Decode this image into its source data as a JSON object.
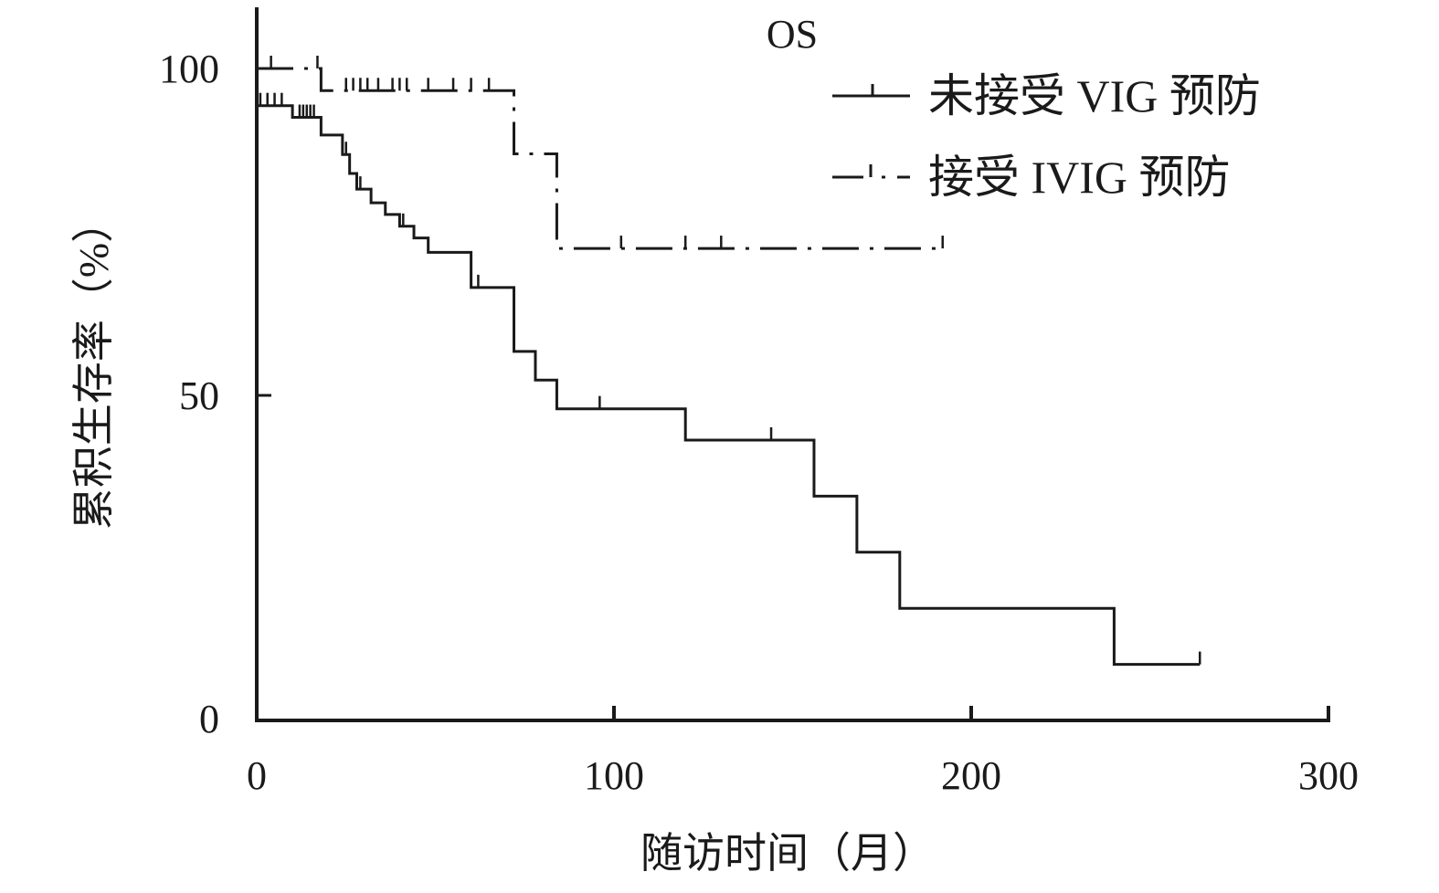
{
  "chart_data": {
    "type": "line",
    "title": "OS",
    "xlabel": "随访时间（月）",
    "ylabel": "累积生存率（%）",
    "xlim": [
      0,
      300
    ],
    "ylim": [
      0,
      100
    ],
    "x_ticks": [
      0,
      100,
      200,
      300
    ],
    "x_tick_labels": [
      "0",
      "100",
      "200",
      "300"
    ],
    "y_ticks": [
      0,
      50,
      100
    ],
    "y_tick_labels": [
      "0",
      "50",
      "100"
    ],
    "legend_position": "top-right",
    "grid": false,
    "series": [
      {
        "name": "未接受 VIG 预防",
        "style": "solid",
        "color": "#1a1a1a",
        "steps": [
          [
            0,
            94.3
          ],
          [
            10,
            92.5
          ],
          [
            18,
            89.8
          ],
          [
            24,
            86.8
          ],
          [
            26,
            83.9
          ],
          [
            28,
            81.5
          ],
          [
            32,
            79.4
          ],
          [
            36,
            77.6
          ],
          [
            40,
            75.8
          ],
          [
            44,
            74.0
          ],
          [
            48,
            71.8
          ],
          [
            60,
            66.4
          ],
          [
            72,
            56.6
          ],
          [
            78,
            52.2
          ],
          [
            84,
            47.8
          ],
          [
            120,
            43.0
          ],
          [
            156,
            34.4
          ],
          [
            168,
            25.8
          ],
          [
            180,
            17.2
          ],
          [
            240,
            8.6
          ],
          [
            264,
            8.6
          ]
        ],
        "censored": [
          [
            1,
            94.3
          ],
          [
            3,
            94.3
          ],
          [
            5,
            94.3
          ],
          [
            7,
            94.3
          ],
          [
            12,
            92.5
          ],
          [
            13,
            92.5
          ],
          [
            14,
            92.5
          ],
          [
            15,
            92.5
          ],
          [
            16,
            92.5
          ],
          [
            25,
            86.8
          ],
          [
            29,
            81.5
          ],
          [
            41,
            75.8
          ],
          [
            62,
            66.4
          ],
          [
            96,
            47.8
          ],
          [
            144,
            43.0
          ],
          [
            264,
            8.6
          ]
        ]
      },
      {
        "name": "接受 IVIG 预防",
        "style": "dash-dot",
        "color": "#1a1a1a",
        "steps": [
          [
            0,
            100
          ],
          [
            18,
            96.6
          ],
          [
            72,
            86.9
          ],
          [
            84,
            72.4
          ],
          [
            192,
            72.4
          ]
        ],
        "censored": [
          [
            4,
            100
          ],
          [
            17,
            100
          ],
          [
            25,
            96.6
          ],
          [
            27,
            96.6
          ],
          [
            29,
            96.6
          ],
          [
            31,
            96.6
          ],
          [
            34,
            96.6
          ],
          [
            38,
            96.6
          ],
          [
            40,
            96.6
          ],
          [
            42,
            96.6
          ],
          [
            48,
            96.6
          ],
          [
            55,
            96.6
          ],
          [
            60,
            96.6
          ],
          [
            65,
            96.6
          ],
          [
            102,
            72.4
          ],
          [
            120,
            72.4
          ],
          [
            130,
            72.4
          ],
          [
            192,
            72.4
          ]
        ]
      }
    ]
  }
}
